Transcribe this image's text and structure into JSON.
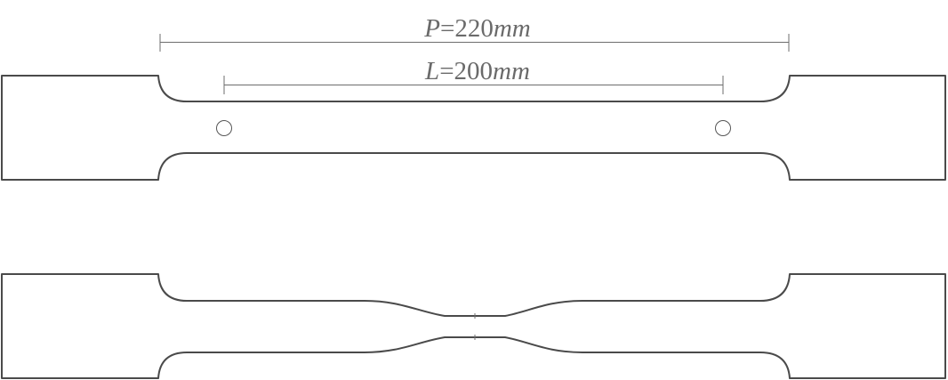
{
  "figure": {
    "dimension_labels": [
      {
        "variable": "P",
        "equals": "=",
        "value": "220",
        "unit": "mm"
      },
      {
        "variable": "L",
        "equals": "=",
        "value": "200",
        "unit": "mm"
      }
    ],
    "colors": {
      "outline": "#4a4a4a",
      "dimension_line": "#6d6d6d",
      "label_text": "#6a6a6a",
      "background": "#ffffff"
    },
    "specimens": [
      "before-test",
      "after-test-necked"
    ]
  }
}
